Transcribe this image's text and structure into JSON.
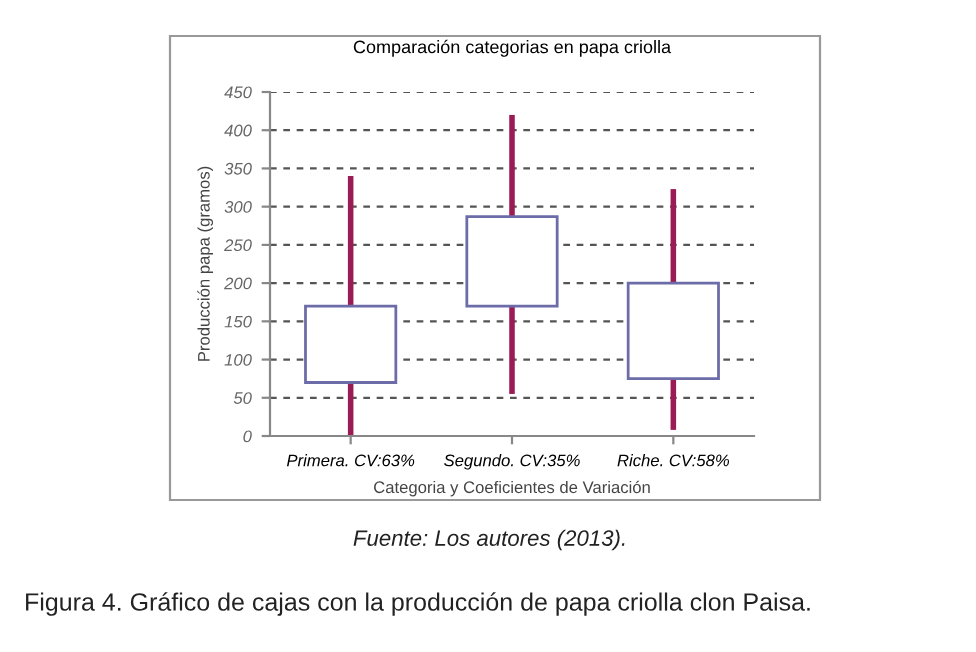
{
  "chart_data": {
    "type": "box",
    "title": "Comparación categorias en papa criolla",
    "xlabel": "Categoria y Coeficientes de Variación",
    "ylabel": "Producción papa (gramos)",
    "categories": [
      "Primera. CV:63%",
      "Segundo. CV:35%",
      "Riche. CV:58%"
    ],
    "boxes": [
      {
        "low": 0,
        "q1": 70,
        "q3": 170,
        "high": 340
      },
      {
        "low": 55,
        "q1": 170,
        "q3": 287,
        "high": 420
      },
      {
        "low": 8,
        "q1": 75,
        "q3": 200,
        "high": 323
      }
    ],
    "ylim": [
      0,
      450
    ],
    "yticks": [
      0,
      50,
      100,
      150,
      200,
      250,
      300,
      350,
      400,
      450
    ],
    "grid": "y",
    "annotations": [
      "Fuente: Los autores (2013).",
      "Figura 4. Gráfico de cajas con la producción de papa criolla clon Paisa."
    ]
  }
}
